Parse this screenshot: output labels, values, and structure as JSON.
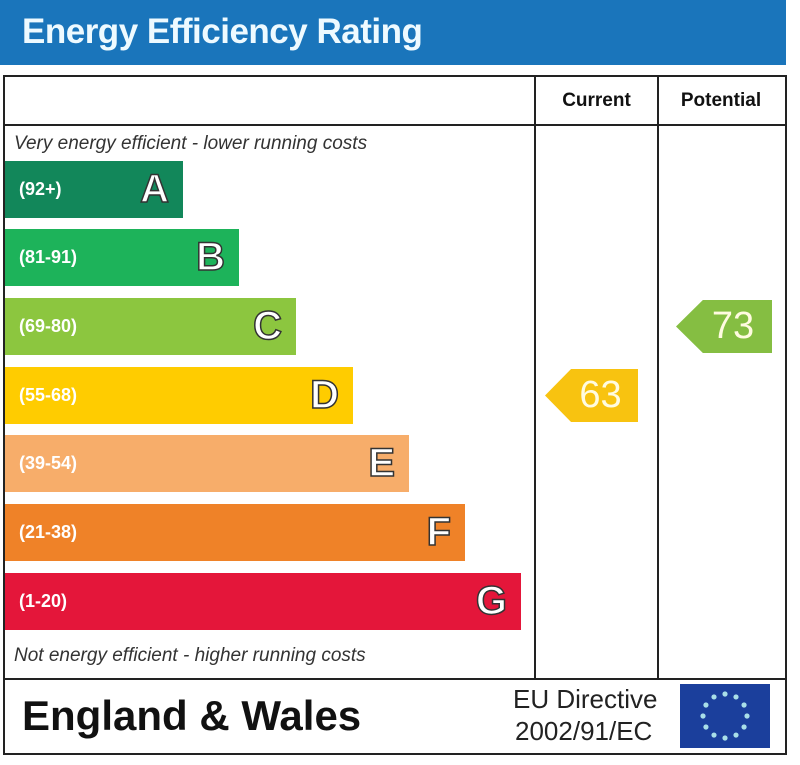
{
  "title": "Energy Efficiency Rating",
  "columns": {
    "current": "Current",
    "potential": "Potential"
  },
  "top_note": "Very energy efficient - lower running costs",
  "bottom_note": "Not energy efficient - higher running costs",
  "footer": {
    "country": "England & Wales",
    "directive_line1": "EU Directive",
    "directive_line2": "2002/91/EC"
  },
  "chart_data": {
    "type": "bar",
    "bands": [
      {
        "range": "(92+)",
        "letter": "A",
        "color": "#12875a"
      },
      {
        "range": "(81-91)",
        "letter": "B",
        "color": "#1db35a"
      },
      {
        "range": "(69-80)",
        "letter": "C",
        "color": "#8cc63f"
      },
      {
        "range": "(55-68)",
        "letter": "D",
        "color": "#ffcc00"
      },
      {
        "range": "(39-54)",
        "letter": "E",
        "color": "#f7ad6a"
      },
      {
        "range": "(21-38)",
        "letter": "F",
        "color": "#ef8228"
      },
      {
        "range": "(1-20)",
        "letter": "G",
        "color": "#e4163a"
      }
    ],
    "current": {
      "value": 63,
      "band": "D",
      "color": "#f8c310"
    },
    "potential": {
      "value": 73,
      "band": "C",
      "color": "#85be42"
    }
  }
}
